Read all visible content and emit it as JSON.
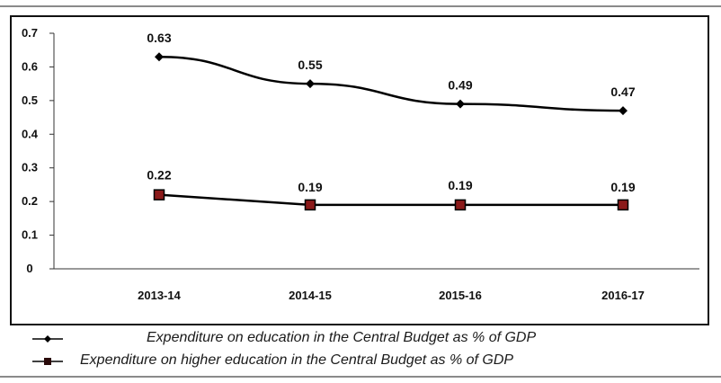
{
  "chart_data": {
    "type": "line",
    "categories": [
      "2013-14",
      "2014-15",
      "2015-16",
      "2016-17"
    ],
    "series": [
      {
        "name": "Expenditure on education in the Central Budget as % of GDP",
        "values": [
          0.63,
          0.55,
          0.49,
          0.47
        ],
        "labels": [
          "0.63",
          "0.55",
          "0.49",
          "0.47"
        ],
        "marker": "diamond",
        "color": "#000000"
      },
      {
        "name": "Expenditure on higher education in the Central Budget as % of GDP",
        "values": [
          0.22,
          0.19,
          0.19,
          0.19
        ],
        "labels": [
          "0.22",
          "0.19",
          "0.19",
          "0.19"
        ],
        "marker": "square",
        "color": "#000000",
        "marker_fill": "#8b1a1a"
      }
    ],
    "yticks": [
      "0",
      "0.1",
      "0.2",
      "0.3",
      "0.4",
      "0.5",
      "0.6",
      "0.7"
    ],
    "ylim": [
      0,
      0.7
    ],
    "grid": false,
    "legend_position": "bottom"
  }
}
